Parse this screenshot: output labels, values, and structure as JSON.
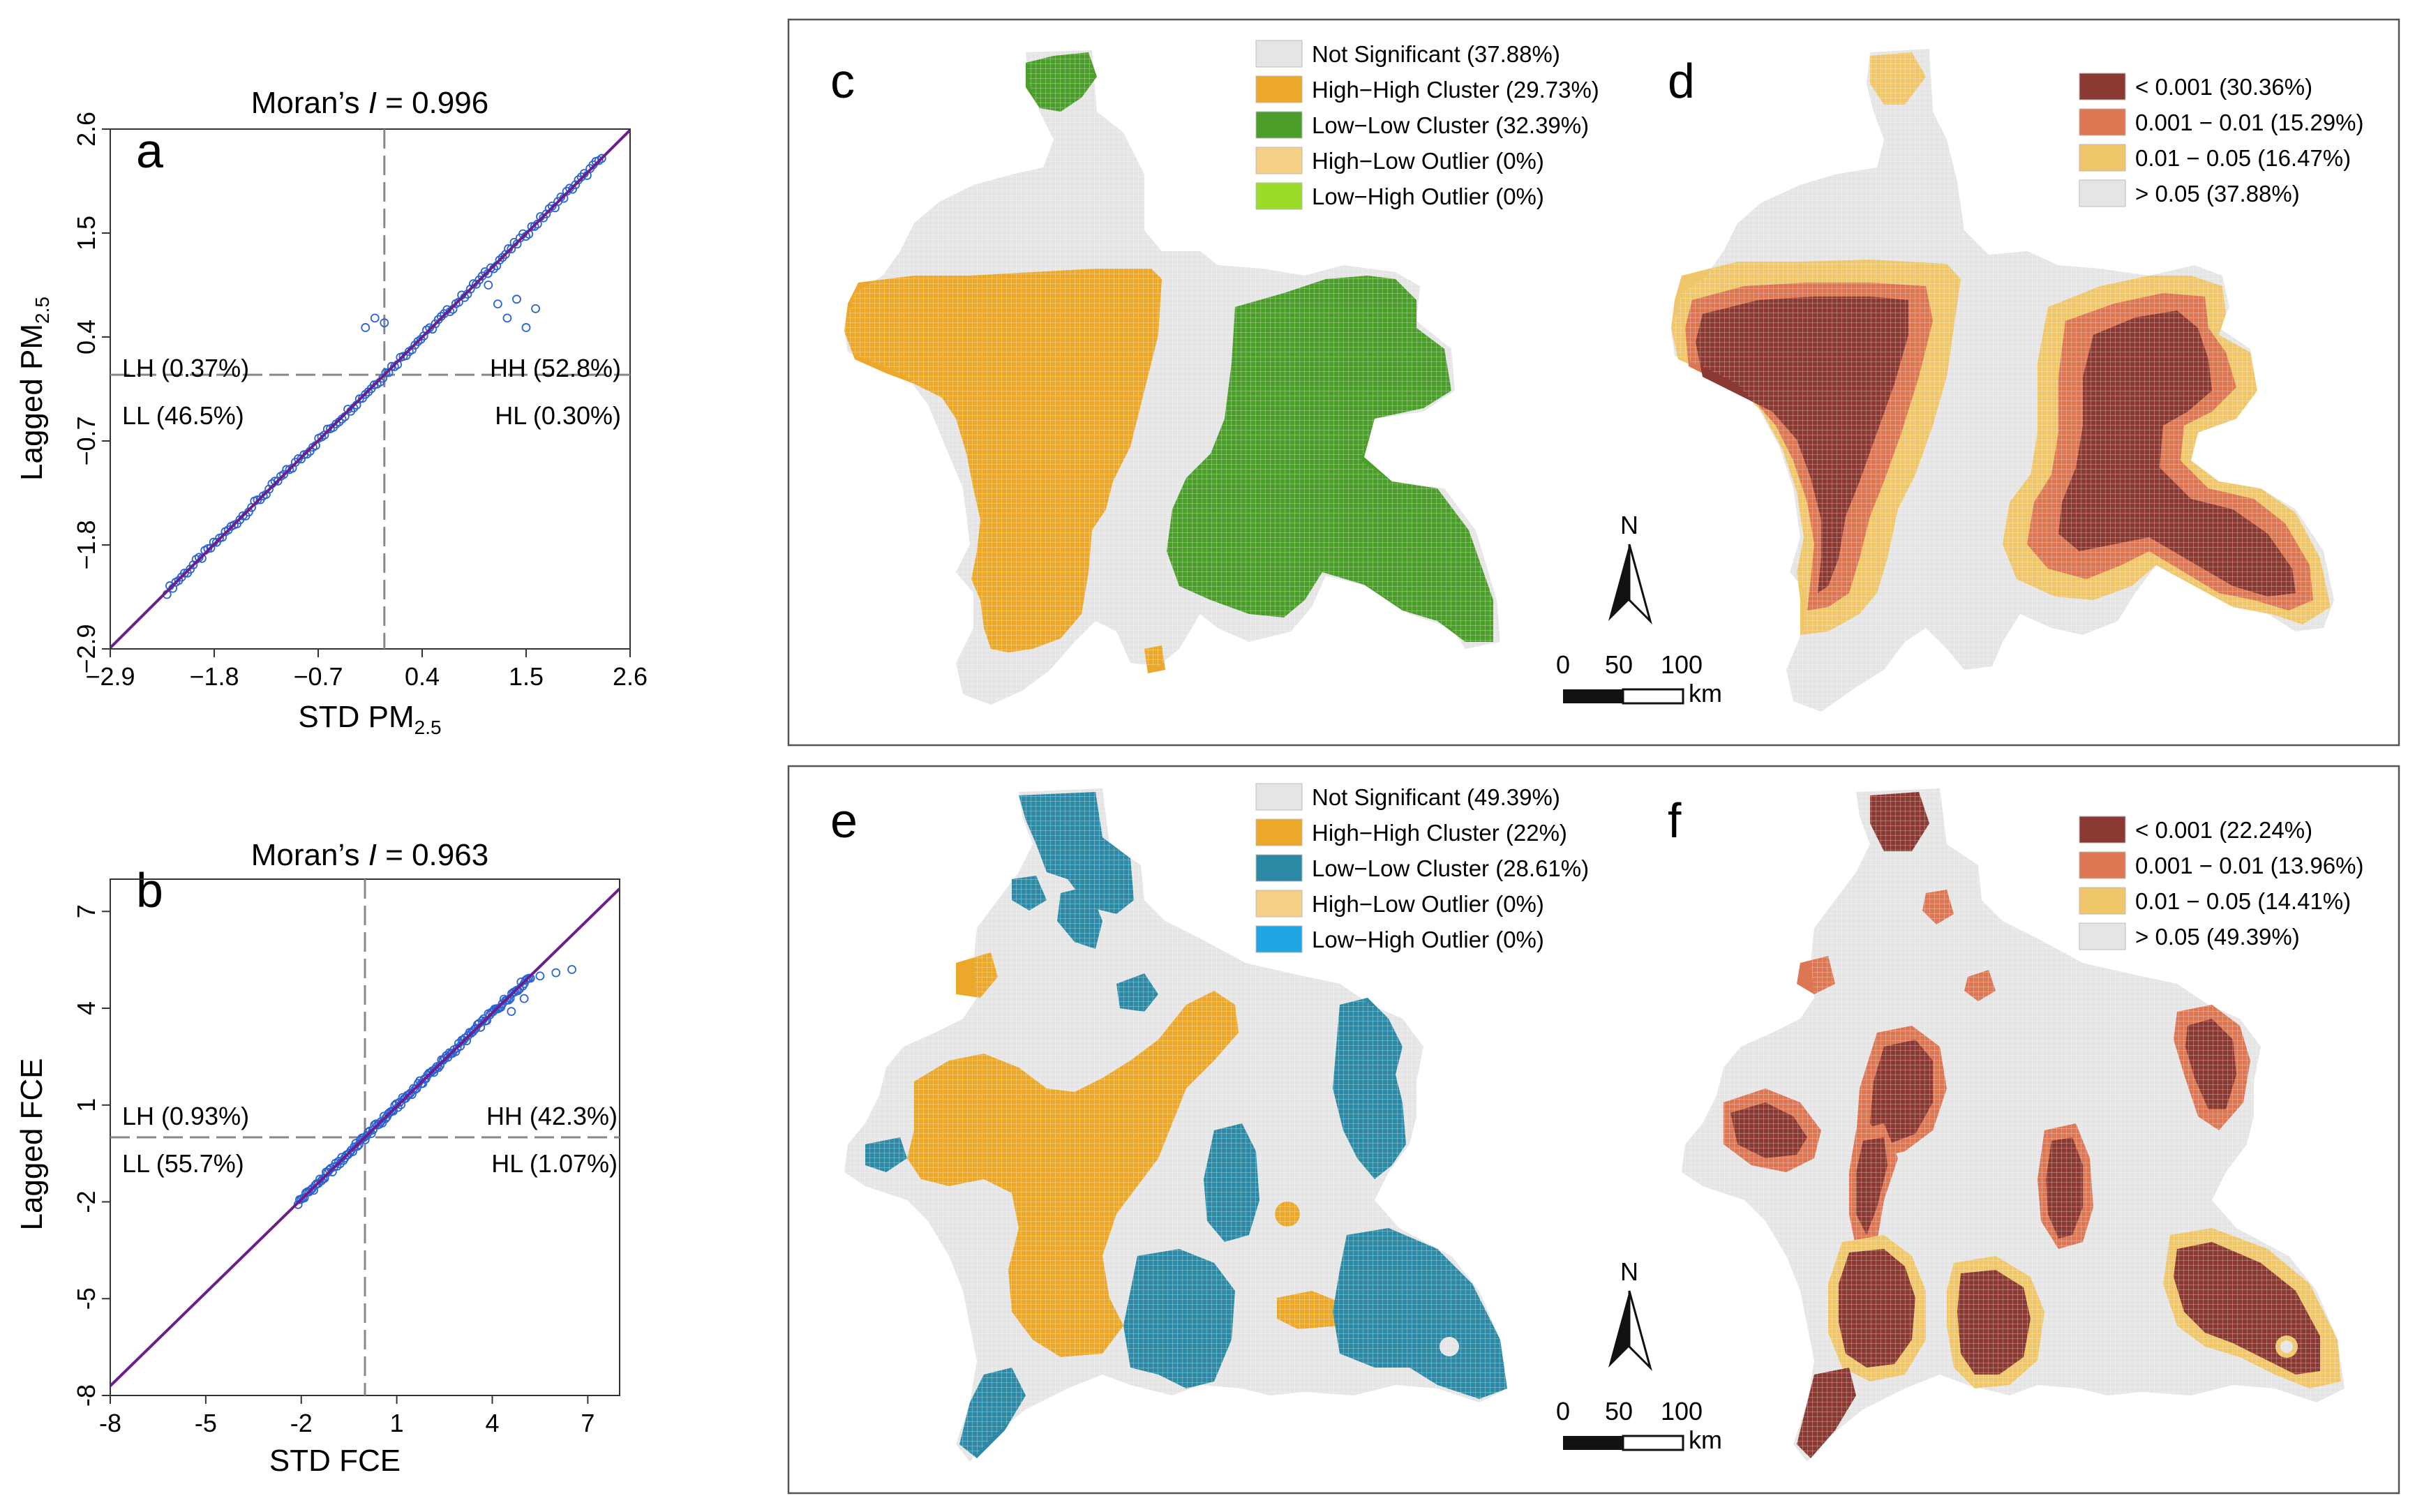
{
  "colors": {
    "not_significant": "#e5e5e5",
    "grid_line": "#cccccc",
    "high_high": "#eba82b",
    "low_low_pm": "#4c9e2b",
    "low_low_fce": "#2c8aa6",
    "high_low": "#f5cf86",
    "low_high_pm": "#9bdb2a",
    "low_high_fce": "#1fa6e3",
    "p001": "#8a3a32",
    "p01": "#dd7652",
    "p05": "#efc66a",
    "p_ns": "#e5e5e5",
    "point": "#2b63d6",
    "fit": "#6a1f8a"
  },
  "chart_data": [
    {
      "type": "scatter",
      "panel": "a",
      "title_prefix": "Moran’s ",
      "title_italic": "I",
      "title_suffix": " = 0.996",
      "xlabel_main": "STD PM",
      "xlabel_sub": "2.5",
      "ylabel_main": "Lagged PM",
      "ylabel_sub": "2.5",
      "xlim": [
        -2.9,
        2.6
      ],
      "ylim": [
        -2.9,
        2.6
      ],
      "xticks": [
        -2.9,
        -1.8,
        -0.7,
        0.4,
        1.5,
        2.6
      ],
      "xtick_labels": [
        "−2.9",
        "−1.8",
        "−0.7",
        "0.4",
        "1.5",
        "2.6"
      ],
      "yticks": [
        -2.9,
        -1.8,
        -0.7,
        0.4,
        1.5,
        2.6
      ],
      "ytick_labels": [
        "−2.9",
        "−1.8",
        "−0.7",
        "0.4",
        "1.5",
        "2.6"
      ],
      "mean_line": [
        0,
        0
      ],
      "fit_slope": 0.996,
      "quadrants": [
        "LH (0.37%)",
        "HH (52.8%)",
        "LL (46.5%)",
        "HL (0.30%)"
      ],
      "points_range": [
        -2.3,
        2.3
      ],
      "outliers": [
        [
          -0.2,
          0.5
        ],
        [
          -0.1,
          0.6
        ],
        [
          0.0,
          0.55
        ],
        [
          1.2,
          0.75
        ],
        [
          1.3,
          0.6
        ],
        [
          1.4,
          0.8
        ],
        [
          1.5,
          0.5
        ],
        [
          1.6,
          0.7
        ],
        [
          1.1,
          0.95
        ]
      ]
    },
    {
      "type": "scatter",
      "panel": "b",
      "title_prefix": "Moran’s ",
      "title_italic": "I",
      "title_suffix": " = 0.963",
      "xlabel_main": "STD FCE",
      "xlabel_sub": "",
      "ylabel_main": "Lagged FCE",
      "ylabel_sub": "",
      "xlim": [
        -8,
        8
      ],
      "ylim": [
        -8,
        8
      ],
      "xticks": [
        -8,
        -5,
        -2,
        1,
        4,
        7
      ],
      "xtick_labels": [
        "-8",
        "-5",
        "-2",
        "1",
        "4",
        "7"
      ],
      "yticks": [
        -8,
        -5,
        -2,
        1,
        4,
        7
      ],
      "ytick_labels": [
        "-8",
        "-5",
        "-2",
        "1",
        "4",
        "7"
      ],
      "mean_line": [
        0,
        0
      ],
      "fit_slope": 0.963,
      "quadrants": [
        "LH (0.93%)",
        "HH (42.3%)",
        "LL (55.7%)",
        "HL (1.07%)"
      ],
      "points_range": [
        -2.1,
        5.2
      ],
      "outliers": [
        [
          5.5,
          5.0
        ],
        [
          6.0,
          5.1
        ],
        [
          6.5,
          5.2
        ],
        [
          5.0,
          4.3
        ],
        [
          4.6,
          3.9
        ]
      ]
    }
  ],
  "maps": {
    "c": {
      "label": "c",
      "legend": [
        {
          "text": "Not Significant (37.88%)",
          "color": "#e5e5e5"
        },
        {
          "text": "High−High Cluster (29.73%)",
          "color": "#eba82b"
        },
        {
          "text": "Low−Low Cluster (32.39%)",
          "color": "#4c9e2b"
        },
        {
          "text": "High−Low Outlier (0%)",
          "color": "#f5cf86"
        },
        {
          "text": "Low−High Outlier (0%)",
          "color": "#9bdb2a"
        }
      ]
    },
    "d": {
      "label": "d",
      "legend": [
        {
          "text": "< 0.001 (30.36%)",
          "color": "#8a3a32"
        },
        {
          "text": "0.001 − 0.01 (15.29%)",
          "color": "#dd7652"
        },
        {
          "text": "0.01 − 0.05 (16.47%)",
          "color": "#efc66a"
        },
        {
          "text": "> 0.05  (37.88%)",
          "color": "#e5e5e5"
        }
      ]
    },
    "e": {
      "label": "e",
      "legend": [
        {
          "text": "Not Significant (49.39%)",
          "color": "#e5e5e5"
        },
        {
          "text": "High−High Cluster (22%)",
          "color": "#eba82b"
        },
        {
          "text": "Low−Low Cluster (28.61%)",
          "color": "#2c8aa6"
        },
        {
          "text": "High−Low Outlier (0%)",
          "color": "#f5cf86"
        },
        {
          "text": "Low−High Outlier (0%)",
          "color": "#1fa6e3"
        }
      ]
    },
    "f": {
      "label": "f",
      "legend": [
        {
          "text": "< 0.001 (22.24%)",
          "color": "#8a3a32"
        },
        {
          "text": "0.001 − 0.01 (13.96%)",
          "color": "#dd7652"
        },
        {
          "text": "0.01 − 0.05 (14.41%)",
          "color": "#efc66a"
        },
        {
          "text": ">  0.05 (49.39%)",
          "color": "#e5e5e5"
        }
      ]
    }
  },
  "scalebar": {
    "north": "N",
    "labels": [
      "0",
      "50",
      "100"
    ],
    "unit": "km"
  }
}
